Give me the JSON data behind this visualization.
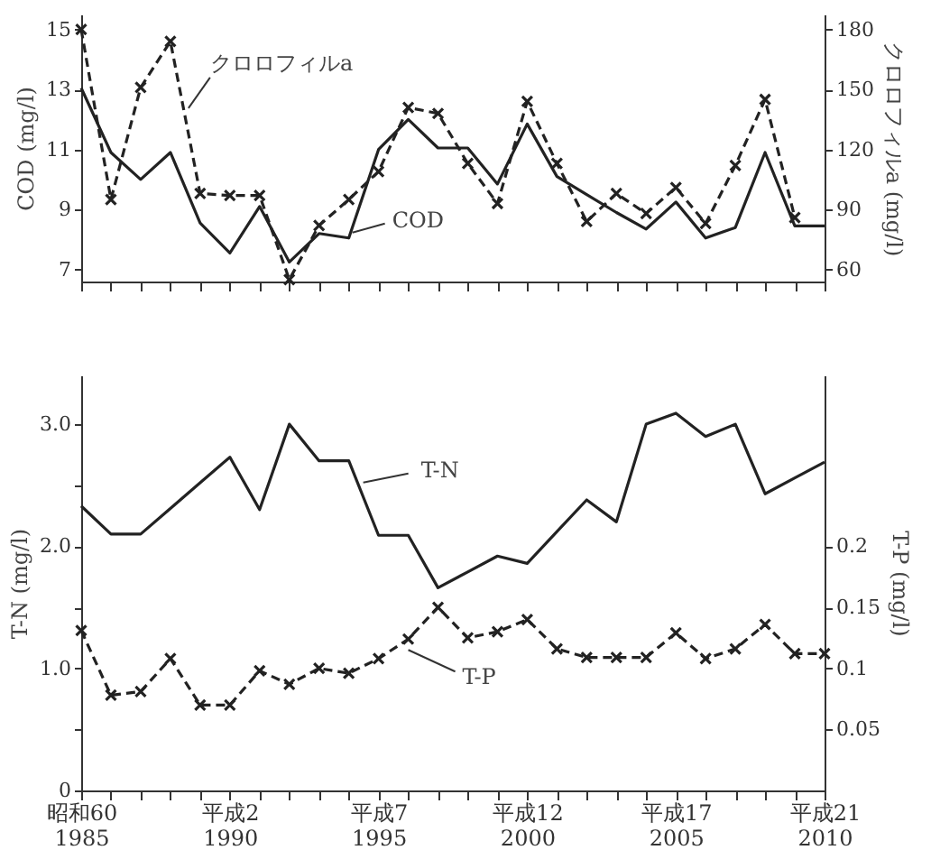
{
  "chart_data": [
    {
      "type": "line",
      "ylabel": "COD (mg/l)",
      "y2label": "クロロフィルa (mg/l)",
      "legend": false,
      "grid": false,
      "categories": [
        null,
        null,
        null,
        null,
        null,
        null,
        null,
        null,
        null,
        null,
        null,
        null,
        null,
        null,
        null,
        null,
        null,
        null,
        null,
        null,
        null,
        null,
        null,
        null,
        null,
        null
      ],
      "ylim": [
        6.6,
        15.5
      ],
      "yticks": [
        7,
        9,
        11,
        13,
        15
      ],
      "y2lim": [
        54,
        187.5
      ],
      "y2ticks": [
        60,
        90,
        120,
        150,
        180
      ],
      "series": [
        {
          "name": "COD",
          "color": "#222222",
          "marker": "none",
          "line_style": "solid",
          "values": [
            13.05,
            10.9,
            10.0,
            10.9,
            8.55,
            7.55,
            9.1,
            7.25,
            8.2,
            8.05,
            11.0,
            12.0,
            11.05,
            11.05,
            9.85,
            11.85,
            10.1,
            9.5,
            8.9,
            8.35,
            9.25,
            8.05,
            8.4,
            10.9,
            8.45,
            8.45
          ]
        },
        {
          "name": "クロロフィルa",
          "color": "#222222",
          "axis": "y2",
          "marker": "cross",
          "line_style": "dashed",
          "values": [
            180,
            95,
            151,
            174,
            98,
            97,
            97,
            55,
            82,
            95,
            109,
            141,
            138,
            113,
            93,
            144,
            113,
            84,
            98,
            88,
            101,
            83,
            112,
            145,
            86,
            null
          ]
        }
      ]
    },
    {
      "type": "line",
      "ylabel": "T-N (mg/l)",
      "y2label": "T-P (mg/l)",
      "legend": false,
      "grid": false,
      "categories": [
        "昭和60\n1985",
        null,
        null,
        null,
        null,
        "平成2\n1990",
        null,
        null,
        null,
        null,
        "平成7\n1995",
        null,
        null,
        null,
        null,
        "平成12\n2000",
        null,
        null,
        null,
        null,
        "平成17\n2005",
        null,
        null,
        null,
        null,
        "平成21\n2010"
      ],
      "ylim": [
        0,
        3.4
      ],
      "yticks": [
        0,
        {
          "value": 0.5,
          "label": null
        },
        {
          "value": 1,
          "label": "1.0"
        },
        {
          "value": 1.5,
          "label": null
        },
        {
          "value": 2,
          "label": "2.0"
        },
        {
          "value": 2.5,
          "label": null
        },
        {
          "value": 3,
          "label": "3.0"
        }
      ],
      "y2lim": [
        0,
        0.34
      ],
      "y2ticks": [
        0.05,
        0.1,
        0.15,
        0.2
      ],
      "series": [
        {
          "name": "T-N",
          "color": "#222222",
          "marker": "none",
          "line_style": "solid",
          "values": [
            2.33,
            2.1,
            2.1,
            2.31,
            2.52,
            2.73,
            2.3,
            3.0,
            2.7,
            2.7,
            2.09,
            2.09,
            1.66,
            1.79,
            1.92,
            1.86,
            2.12,
            2.38,
            2.2,
            3.0,
            3.09,
            2.9,
            3.0,
            2.43,
            2.56,
            2.69
          ]
        },
        {
          "name": "T-P",
          "color": "#222222",
          "axis": "y2",
          "marker": "cross",
          "line_style": "dashed",
          "values": [
            0.131,
            0.078,
            0.081,
            0.108,
            0.07,
            0.07,
            0.098,
            0.087,
            0.1,
            0.096,
            0.108,
            0.124,
            0.15,
            0.125,
            0.13,
            0.14,
            0.116,
            0.109,
            0.109,
            0.109,
            0.129,
            0.108,
            0.116,
            0.136,
            0.112,
            0.112
          ]
        }
      ]
    }
  ]
}
